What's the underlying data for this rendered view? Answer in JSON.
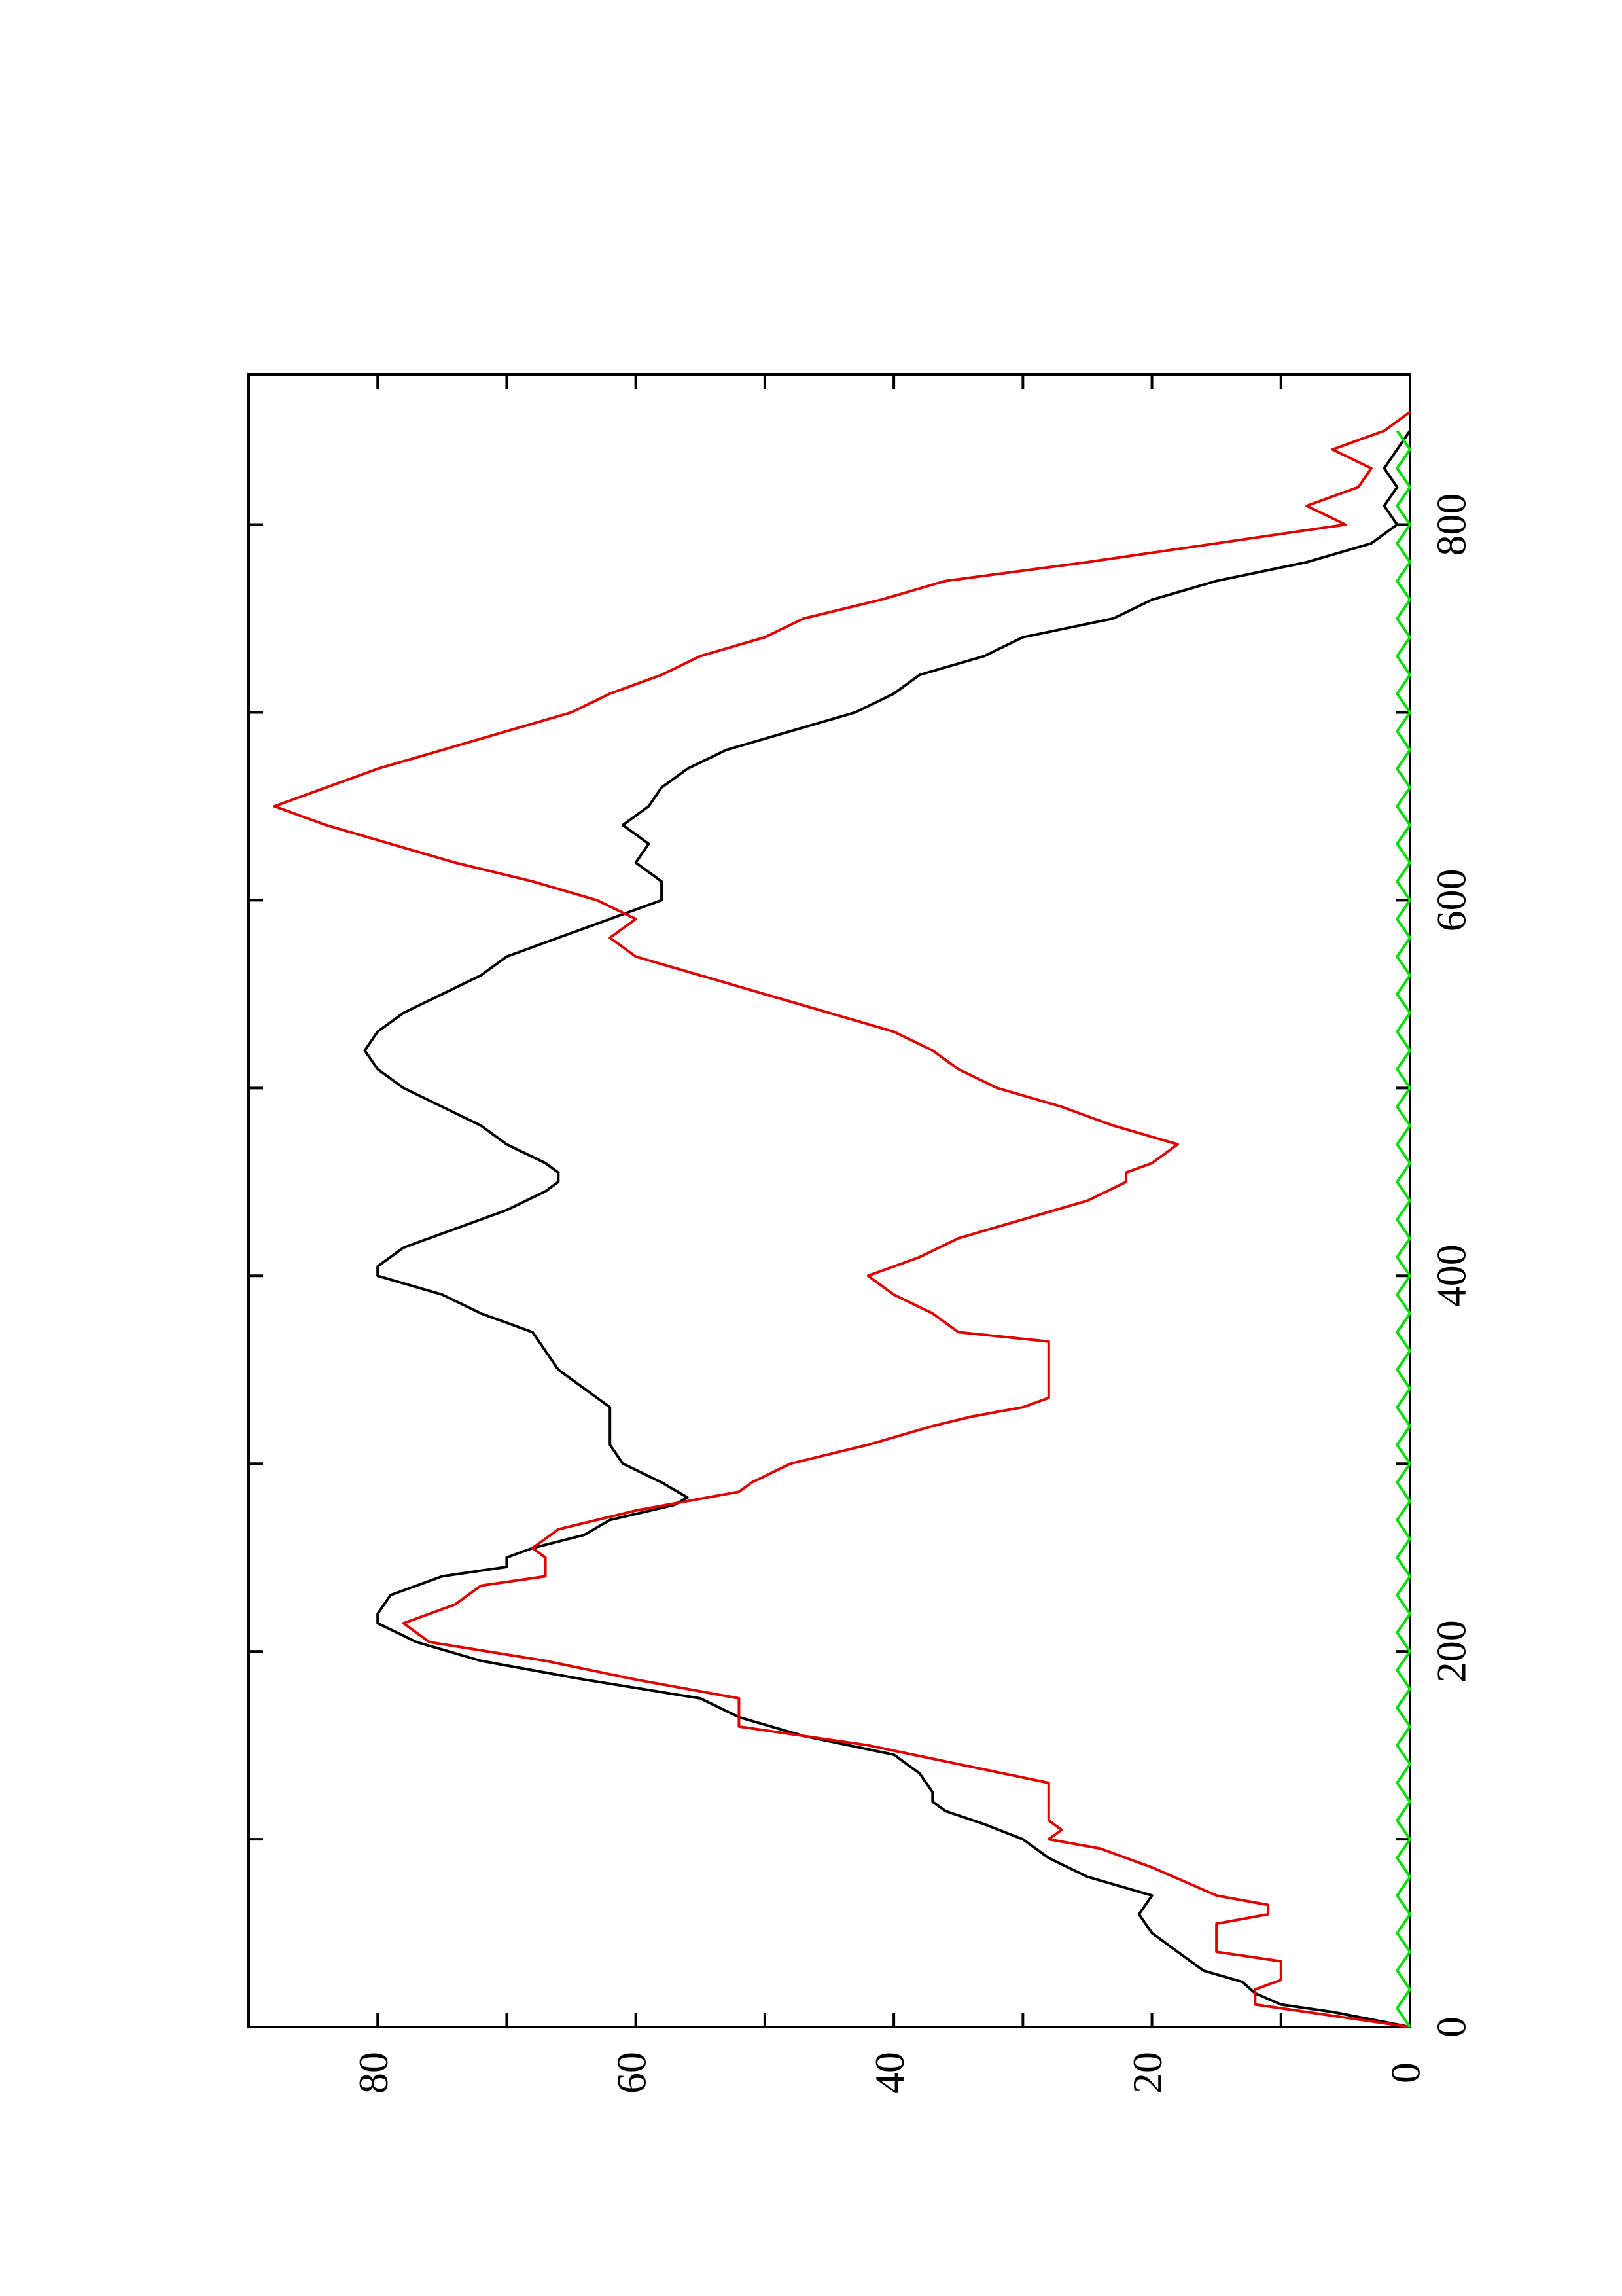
{
  "chart_data": {
    "type": "line",
    "orientation": "rotated-90-ccw",
    "title": "",
    "xlabel": "",
    "ylabel": "",
    "xlim": [
      0,
      880
    ],
    "ylim": [
      0,
      90
    ],
    "x_ticks": [
      0,
      200,
      400,
      600,
      800
    ],
    "y_ticks": [
      0,
      20,
      40,
      60,
      80
    ],
    "x_tick_labels": [
      "0",
      "200",
      "400",
      "600",
      "800"
    ],
    "y_tick_labels": [
      "0",
      "20",
      "40",
      "60",
      "80"
    ],
    "grid": false,
    "legend": "none",
    "series": [
      {
        "color": "#000000",
        "points": [
          [
            0,
            0
          ],
          [
            8,
            6
          ],
          [
            12,
            10
          ],
          [
            18,
            12
          ],
          [
            24,
            13
          ],
          [
            30,
            16
          ],
          [
            40,
            18
          ],
          [
            50,
            20
          ],
          [
            60,
            21
          ],
          [
            70,
            20
          ],
          [
            80,
            25
          ],
          [
            90,
            28
          ],
          [
            100,
            30
          ],
          [
            108,
            33
          ],
          [
            115,
            36
          ],
          [
            120,
            37
          ],
          [
            125,
            37
          ],
          [
            135,
            38
          ],
          [
            145,
            40
          ],
          [
            155,
            47
          ],
          [
            165,
            52
          ],
          [
            175,
            55
          ],
          [
            185,
            64
          ],
          [
            195,
            72
          ],
          [
            205,
            77
          ],
          [
            215,
            80
          ],
          [
            220,
            80
          ],
          [
            230,
            79
          ],
          [
            240,
            75
          ],
          [
            245,
            70
          ],
          [
            250,
            70
          ],
          [
            255,
            68
          ],
          [
            262,
            64
          ],
          [
            270,
            62
          ],
          [
            278,
            57
          ],
          [
            282,
            56
          ],
          [
            290,
            58
          ],
          [
            300,
            61
          ],
          [
            310,
            62
          ],
          [
            320,
            62
          ],
          [
            330,
            62
          ],
          [
            340,
            64
          ],
          [
            350,
            66
          ],
          [
            360,
            67
          ],
          [
            370,
            68
          ],
          [
            380,
            72
          ],
          [
            390,
            75
          ],
          [
            400,
            80
          ],
          [
            405,
            80
          ],
          [
            415,
            78
          ],
          [
            425,
            74
          ],
          [
            435,
            70
          ],
          [
            445,
            67
          ],
          [
            450,
            66
          ],
          [
            455,
            66
          ],
          [
            460,
            67
          ],
          [
            470,
            70
          ],
          [
            480,
            72
          ],
          [
            490,
            75
          ],
          [
            500,
            78
          ],
          [
            510,
            80
          ],
          [
            520,
            81
          ],
          [
            530,
            80
          ],
          [
            540,
            78
          ],
          [
            550,
            75
          ],
          [
            560,
            72
          ],
          [
            570,
            70
          ],
          [
            580,
            66
          ],
          [
            590,
            62
          ],
          [
            600,
            58
          ],
          [
            610,
            58
          ],
          [
            620,
            60
          ],
          [
            630,
            59
          ],
          [
            640,
            61
          ],
          [
            650,
            59
          ],
          [
            660,
            58
          ],
          [
            670,
            56
          ],
          [
            680,
            53
          ],
          [
            690,
            48
          ],
          [
            700,
            43
          ],
          [
            710,
            40
          ],
          [
            720,
            38
          ],
          [
            730,
            33
          ],
          [
            740,
            30
          ],
          [
            750,
            23
          ],
          [
            760,
            20
          ],
          [
            770,
            15
          ],
          [
            780,
            8
          ],
          [
            790,
            3
          ],
          [
            800,
            1
          ],
          [
            810,
            2
          ],
          [
            820,
            1
          ],
          [
            830,
            2
          ],
          [
            840,
            1
          ],
          [
            850,
            0
          ]
        ]
      },
      {
        "color": "#e00000",
        "points": [
          [
            0,
            0
          ],
          [
            12,
            12
          ],
          [
            20,
            12
          ],
          [
            25,
            10
          ],
          [
            35,
            10
          ],
          [
            40,
            15
          ],
          [
            55,
            15
          ],
          [
            60,
            11
          ],
          [
            65,
            11
          ],
          [
            70,
            15
          ],
          [
            85,
            20
          ],
          [
            95,
            24
          ],
          [
            100,
            28
          ],
          [
            105,
            27
          ],
          [
            110,
            28
          ],
          [
            120,
            28
          ],
          [
            130,
            28
          ],
          [
            140,
            35
          ],
          [
            150,
            42
          ],
          [
            160,
            52
          ],
          [
            175,
            52
          ],
          [
            185,
            60
          ],
          [
            195,
            67
          ],
          [
            205,
            76
          ],
          [
            215,
            78
          ],
          [
            225,
            74
          ],
          [
            235,
            72
          ],
          [
            240,
            67
          ],
          [
            250,
            67
          ],
          [
            255,
            68
          ],
          [
            265,
            66
          ],
          [
            275,
            60
          ],
          [
            285,
            52
          ],
          [
            290,
            51
          ],
          [
            300,
            48
          ],
          [
            310,
            42
          ],
          [
            320,
            37
          ],
          [
            325,
            34
          ],
          [
            330,
            30
          ],
          [
            335,
            28
          ],
          [
            340,
            28
          ],
          [
            345,
            28
          ],
          [
            355,
            28
          ],
          [
            365,
            28
          ],
          [
            370,
            35
          ],
          [
            380,
            37
          ],
          [
            390,
            40
          ],
          [
            400,
            42
          ],
          [
            410,
            38
          ],
          [
            420,
            35
          ],
          [
            430,
            30
          ],
          [
            440,
            25
          ],
          [
            450,
            22
          ],
          [
            455,
            22
          ],
          [
            460,
            20
          ],
          [
            470,
            18
          ],
          [
            480,
            23
          ],
          [
            490,
            27
          ],
          [
            500,
            32
          ],
          [
            510,
            35
          ],
          [
            520,
            37
          ],
          [
            530,
            40
          ],
          [
            540,
            45
          ],
          [
            550,
            50
          ],
          [
            560,
            55
          ],
          [
            570,
            60
          ],
          [
            580,
            62
          ],
          [
            590,
            60
          ],
          [
            600,
            63
          ],
          [
            610,
            68
          ],
          [
            620,
            74
          ],
          [
            630,
            79
          ],
          [
            640,
            84
          ],
          [
            650,
            88
          ],
          [
            660,
            84
          ],
          [
            670,
            80
          ],
          [
            680,
            75
          ],
          [
            690,
            70
          ],
          [
            700,
            65
          ],
          [
            710,
            62
          ],
          [
            720,
            58
          ],
          [
            730,
            55
          ],
          [
            740,
            50
          ],
          [
            750,
            47
          ],
          [
            760,
            41
          ],
          [
            770,
            36
          ],
          [
            780,
            25
          ],
          [
            790,
            15
          ],
          [
            800,
            5
          ],
          [
            810,
            8
          ],
          [
            820,
            4
          ],
          [
            830,
            3
          ],
          [
            840,
            6
          ],
          [
            850,
            2
          ],
          [
            860,
            0
          ]
        ]
      },
      {
        "color": "#00e000",
        "points": [
          [
            0,
            0
          ],
          [
            10,
            1
          ],
          [
            20,
            0
          ],
          [
            30,
            1
          ],
          [
            40,
            0
          ],
          [
            50,
            1
          ],
          [
            60,
            0
          ],
          [
            70,
            1
          ],
          [
            80,
            0
          ],
          [
            90,
            1
          ],
          [
            100,
            0
          ],
          [
            110,
            1
          ],
          [
            120,
            0
          ],
          [
            130,
            1
          ],
          [
            140,
            0
          ],
          [
            150,
            1
          ],
          [
            160,
            0
          ],
          [
            170,
            1
          ],
          [
            180,
            0
          ],
          [
            190,
            1
          ],
          [
            200,
            0
          ],
          [
            210,
            1
          ],
          [
            220,
            0
          ],
          [
            230,
            1
          ],
          [
            240,
            0
          ],
          [
            250,
            1
          ],
          [
            260,
            0
          ],
          [
            270,
            1
          ],
          [
            280,
            0
          ],
          [
            290,
            1
          ],
          [
            300,
            0
          ],
          [
            310,
            1
          ],
          [
            320,
            0
          ],
          [
            330,
            1
          ],
          [
            340,
            0
          ],
          [
            350,
            1
          ],
          [
            360,
            0
          ],
          [
            370,
            1
          ],
          [
            380,
            0
          ],
          [
            390,
            1
          ],
          [
            400,
            0
          ],
          [
            410,
            1
          ],
          [
            420,
            0
          ],
          [
            430,
            1
          ],
          [
            440,
            0
          ],
          [
            450,
            1
          ],
          [
            460,
            0
          ],
          [
            470,
            1
          ],
          [
            480,
            0
          ],
          [
            490,
            1
          ],
          [
            500,
            0
          ],
          [
            510,
            1
          ],
          [
            520,
            0
          ],
          [
            530,
            1
          ],
          [
            540,
            0
          ],
          [
            550,
            1
          ],
          [
            560,
            0
          ],
          [
            570,
            1
          ],
          [
            580,
            0
          ],
          [
            590,
            1
          ],
          [
            600,
            0
          ],
          [
            610,
            1
          ],
          [
            620,
            0
          ],
          [
            630,
            1
          ],
          [
            640,
            0
          ],
          [
            650,
            1
          ],
          [
            660,
            0
          ],
          [
            670,
            1
          ],
          [
            680,
            0
          ],
          [
            690,
            1
          ],
          [
            700,
            0
          ],
          [
            710,
            1
          ],
          [
            720,
            0
          ],
          [
            730,
            1
          ],
          [
            740,
            0
          ],
          [
            750,
            1
          ],
          [
            760,
            0
          ],
          [
            770,
            1
          ],
          [
            780,
            0
          ],
          [
            790,
            1
          ],
          [
            800,
            0
          ],
          [
            810,
            1
          ],
          [
            820,
            0
          ],
          [
            830,
            1
          ],
          [
            840,
            0
          ],
          [
            850,
            1
          ]
        ]
      }
    ]
  }
}
